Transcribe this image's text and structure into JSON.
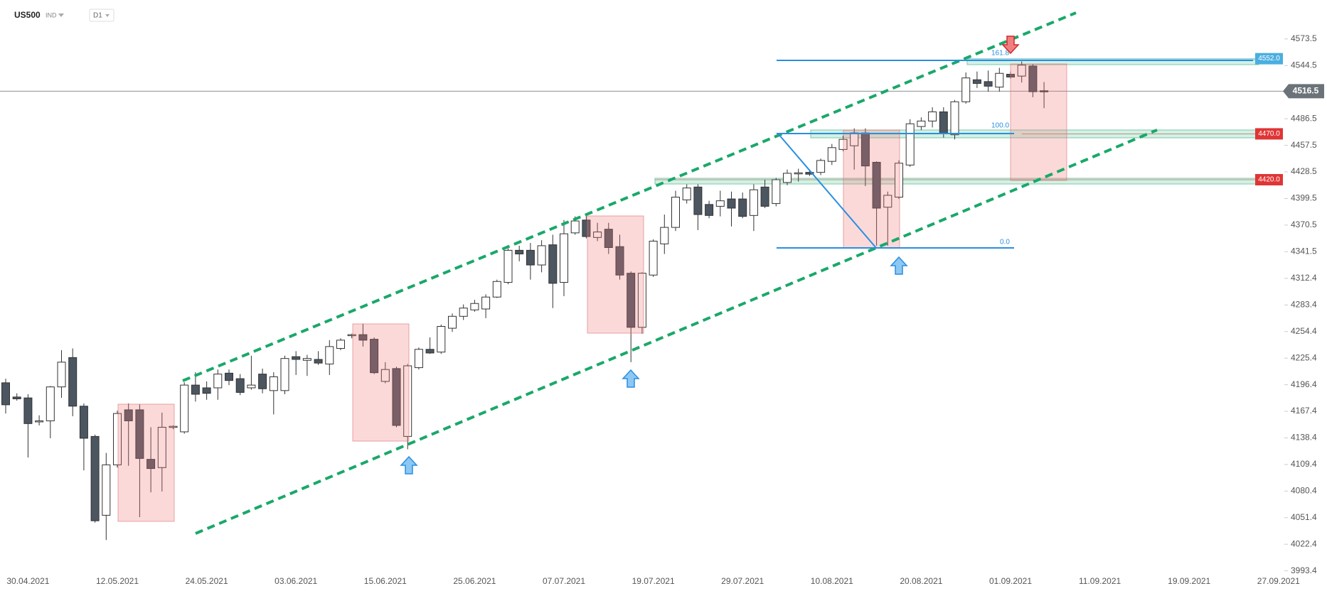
{
  "header": {
    "symbol": "US500",
    "market": "IND",
    "interval": "D1"
  },
  "chart_data": {
    "type": "candlestick",
    "categories": [
      null,
      null,
      "30.04.2021",
      null,
      null,
      null,
      null,
      null,
      null,
      null,
      "12.05.2021",
      null,
      null,
      null,
      null,
      null,
      null,
      null,
      "24.05.2021",
      null,
      null,
      null,
      null,
      null,
      null,
      null,
      "03.06.2021",
      null,
      null,
      null,
      null,
      null,
      null,
      null,
      "15.06.2021",
      null,
      null,
      null,
      null,
      null,
      null,
      null,
      "25.06.2021",
      null,
      null,
      null,
      null,
      null,
      null,
      null,
      "07.07.2021",
      null,
      null,
      null,
      null,
      null,
      null,
      null,
      "19.07.2021",
      null,
      null,
      null,
      null,
      null,
      null,
      null,
      "29.07.2021",
      null,
      null,
      null,
      null,
      null,
      null,
      null,
      "10.08.2021",
      null,
      null,
      null,
      null,
      null,
      null,
      null,
      "20.08.2021",
      null,
      null,
      null,
      null,
      null,
      null,
      null,
      "01.09.2021",
      null,
      null,
      null,
      null,
      null,
      null,
      null,
      "11.09.2021",
      null,
      null,
      null,
      null,
      null,
      null,
      null,
      "19.09.2021",
      null,
      null,
      null,
      null,
      null,
      null,
      null,
      "27.09.2021",
      null,
      null,
      null
    ],
    "open": [
      4198.5,
      4183,
      4182,
      4156,
      4157,
      4194,
      4226,
      4173,
      4140,
      4054,
      4109,
      4169,
      4169,
      4115,
      4106,
      4150,
      4145,
      4196,
      4193,
      4193,
      4209,
      4203,
      4193,
      4208,
      4190,
      4190,
      4227,
      4223,
      4224,
      4219,
      4236,
      4250.5,
      4251,
      4246,
      4200,
      4214,
      4140,
      4215,
      4235,
      4232,
      4258,
      4271,
      4278,
      4279,
      4292,
      4308,
      4343,
      4343,
      4327,
      4349,
      4308,
      4362,
      4376,
      4357,
      4366,
      4347,
      4318,
      4259,
      4316,
      4350,
      4368,
      4398,
      4412,
      4393,
      4391,
      4399,
      4399,
      4381,
      4412,
      4394,
      4417,
      4426.5,
      4428,
      4428,
      4440,
      4453,
      4457,
      4471,
      4439,
      4390,
      4401,
      4436,
      4478,
      4484,
      4494,
      4469,
      4505,
      4529,
      4527,
      4521,
      4535,
      4533,
      4544,
      4517,
      null,
      null,
      null,
      null,
      null,
      null,
      null,
      null,
      null,
      null,
      null,
      null,
      null,
      null,
      null,
      null,
      null,
      null,
      null,
      null,
      null,
      null,
      null,
      null
    ],
    "high": [
      4203,
      4187,
      4186,
      4163,
      4195,
      4234,
      4236,
      4176,
      4142,
      4122,
      4168,
      4176,
      4175,
      4150,
      4166,
      4152,
      4199,
      4210,
      4200,
      4213,
      4213,
      4208,
      4228,
      4214,
      4210,
      4228,
      4233,
      4229,
      4233,
      4245,
      4247,
      4252,
      4263,
      4248,
      4221,
      4216,
      4219,
      4237,
      4248,
      4262,
      4274,
      4284,
      4289,
      4295,
      4311,
      4345,
      4348,
      4351,
      4354,
      4360,
      4376,
      4380,
      4382,
      4373,
      4373,
      4360,
      4320,
      4319,
      4355,
      4382,
      4408,
      4415,
      4415,
      4397,
      4408,
      4407,
      4406,
      4415,
      4420,
      4422,
      4431,
      4432,
      4431,
      4443,
      4459,
      4468,
      4476,
      4476,
      4440,
      4407,
      4441,
      4486,
      4488,
      4499,
      4499,
      4507,
      4537,
      4538,
      4539,
      4542,
      4538,
      4549,
      4546,
      4526.5,
      null,
      null,
      null,
      null,
      null,
      null,
      null,
      null,
      null,
      null,
      null,
      null,
      null,
      null,
      null,
      null,
      null,
      null,
      null,
      null,
      null,
      null,
      null,
      null
    ],
    "low": [
      4165,
      4179,
      4117,
      4152,
      4138,
      4182,
      4162,
      4103,
      4046,
      4027,
      4106,
      4108,
      4052,
      4079,
      4080,
      4148,
      4143,
      4178,
      4180,
      4180,
      4196,
      4185,
      4191,
      4187,
      4164,
      4186,
      4207,
      4206,
      4218,
      4207,
      4234,
      4247,
      4238,
      4208,
      4198,
      4150,
      4126,
      4213,
      4230,
      4230,
      4254,
      4267,
      4276,
      4269,
      4291,
      4306,
      4331,
      4311,
      4319,
      4280,
      4293,
      4360,
      4356,
      4353,
      4339,
      4311,
      4221,
      4252,
      4314,
      4339,
      4364,
      4394,
      4365,
      4378,
      4380,
      4369,
      4378,
      4364,
      4389,
      4391,
      4414,
      4418,
      4424,
      4425,
      4436,
      4451,
      4431,
      4413,
      4348,
      4348,
      4399,
      4434,
      4474,
      4477,
      4466,
      4464,
      4503,
      4520,
      4516,
      4516,
      4530,
      4526,
      4510,
      4498,
      null,
      null,
      null,
      null,
      null,
      null,
      null,
      null,
      null,
      null,
      null,
      null,
      null,
      null,
      null,
      null,
      null,
      null,
      null,
      null,
      null,
      null,
      null,
      null
    ],
    "close": [
      4174.5,
      4181,
      4154,
      4157,
      4194,
      4221,
      4173,
      4138,
      4048,
      4109,
      4165,
      4157,
      4116,
      4105,
      4150,
      4151,
      4196,
      4186,
      4187,
      4208,
      4201,
      4188,
      4196,
      4192,
      4205,
      4225,
      4224,
      4225,
      4220,
      4238,
      4245,
      4251,
      4245,
      4209.5,
      4213,
      4152,
      4217,
      4235,
      4231,
      4260,
      4271,
      4280,
      4285,
      4292,
      4309,
      4343,
      4339,
      4327,
      4348,
      4307,
      4361,
      4375,
      4358,
      4363,
      4346,
      4316,
      4259,
      4318,
      4353,
      4368,
      4401,
      4411,
      4382,
      4381,
      4397,
      4389,
      4380,
      4409,
      4391,
      4420,
      4427,
      4427.5,
      4426,
      4441,
      4455,
      4464,
      4471,
      4435,
      4389,
      4403,
      4438,
      4481,
      4484,
      4494,
      4470,
      4505,
      4531,
      4525,
      4522,
      4536,
      4532,
      4545,
      4516,
      4516.5,
      null,
      null,
      null,
      null,
      null,
      null,
      null,
      null,
      null,
      null,
      null,
      null,
      null,
      null,
      null,
      null,
      null,
      null,
      null,
      null,
      null,
      null,
      null,
      null
    ],
    "up_color": "#ffffff",
    "down_color": "#4b5661",
    "ylim": [
      3990,
      4616
    ],
    "yticks": [
      4573.5,
      4544.5,
      4486.5,
      4457.5,
      4428.5,
      4399.5,
      4370.5,
      4341.5,
      4312.4,
      4283.4,
      4254.4,
      4225.4,
      4196.4,
      4167.4,
      4138.4,
      4109.4,
      4080.4,
      4051.4,
      4022.4,
      3993.4
    ],
    "last_price": 4516.5,
    "levels": [
      {
        "value": 4552,
        "label": "4552.0",
        "color": "#4aaee0"
      },
      {
        "value": 4470,
        "label": "4470.0",
        "color": "#e03535"
      },
      {
        "value": 4420,
        "label": "4420.0",
        "color": "#e03535"
      }
    ],
    "fib_labels": [
      "161.8",
      "100.0",
      "0.0"
    ]
  }
}
